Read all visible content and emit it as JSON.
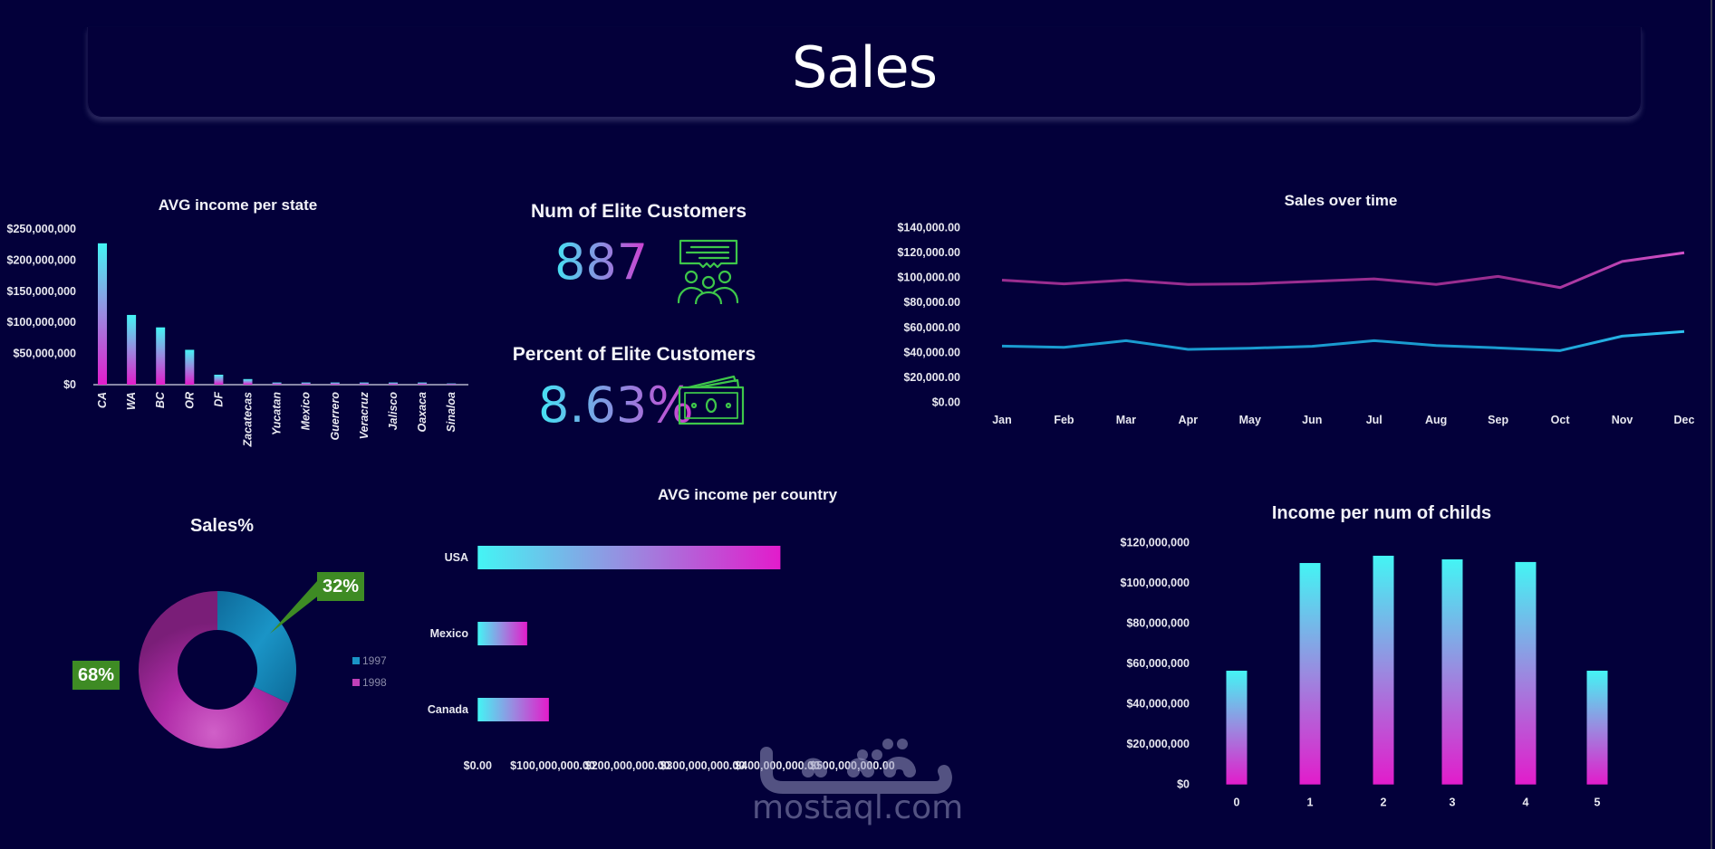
{
  "header": {
    "title": "Sales"
  },
  "kpis": [
    {
      "title": "Num of Elite Customers",
      "value": "887",
      "icon": "people-chat-icon"
    },
    {
      "title": "Percent of Elite Customers",
      "value": "8.63%",
      "icon": "cash-bills-icon"
    }
  ],
  "colors": {
    "background": "#03003a",
    "gradient_top": "#44f4f4",
    "gradient_bottom": "#e21ccb",
    "series_1997": "#1a9bd0",
    "series_1998": "#9a2d90",
    "icon_green": "#3ec74a",
    "callout_green": "#3e8b24"
  },
  "watermark": {
    "arabic": "مستقل",
    "latin": "mostaql.com"
  },
  "chart_data": [
    {
      "id": "avg-income-per-state",
      "type": "bar",
      "title": "AVG income per state",
      "xlabel": "",
      "ylabel": "",
      "categories": [
        "CA",
        "WA",
        "BC",
        "OR",
        "DF",
        "Zacatecas",
        "Yucatan",
        "Mexico",
        "Guerrero",
        "Veracruz",
        "Jalisco",
        "Oaxaca",
        "Sinaloa"
      ],
      "values": [
        227000000,
        112000000,
        92000000,
        56000000,
        16000000,
        9000000,
        3500000,
        3500000,
        3500000,
        3500000,
        3500000,
        3500000,
        2000000
      ],
      "ylim": [
        0,
        250000000
      ],
      "yticks": [
        0,
        50000000,
        100000000,
        150000000,
        200000000,
        250000000
      ],
      "ytick_labels": [
        "$0",
        "$50,000,000",
        "$100,000,000",
        "$150,000,000",
        "$200,000,000",
        "$250,000,000"
      ],
      "grid": false
    },
    {
      "id": "sales-over-time",
      "type": "line",
      "title": "Sales over time",
      "categories": [
        "Jan",
        "Feb",
        "Mar",
        "Apr",
        "May",
        "Jun",
        "Jul",
        "Aug",
        "Sep",
        "Oct",
        "Nov",
        "Dec"
      ],
      "series": [
        {
          "name": "1997",
          "values": [
            45000,
            44000,
            49400,
            42400,
            43300,
            44800,
            49400,
            45500,
            43600,
            41400,
            53000,
            56700
          ]
        },
        {
          "name": "1998",
          "values": [
            98000,
            95000,
            98000,
            94500,
            95000,
            97000,
            99000,
            94500,
            101000,
            92000,
            113000,
            120000
          ]
        }
      ],
      "ylim": [
        0,
        140000
      ],
      "yticks": [
        0,
        20000,
        40000,
        60000,
        80000,
        100000,
        120000,
        140000
      ],
      "ytick_labels": [
        "$0.00",
        "$20,000.00",
        "$40,000.00",
        "$60,000.00",
        "$80,000.00",
        "$100,000.00",
        "$120,000.00",
        "$140,000.00"
      ],
      "grid": false,
      "legend": "none"
    },
    {
      "id": "sales-percent",
      "type": "pie",
      "title": "Sales%",
      "donut": true,
      "labels": [
        "1997",
        "1998"
      ],
      "values": [
        32,
        68
      ],
      "value_labels": [
        "32%",
        "68%"
      ],
      "legend": "right"
    },
    {
      "id": "avg-income-per-country",
      "type": "bar",
      "orientation": "horizontal",
      "title": "AVG income per country",
      "categories": [
        "USA",
        "Mexico",
        "Canada"
      ],
      "values": [
        404000000,
        66000000,
        95000000
      ],
      "xlim": [
        0,
        500000000
      ],
      "xticks": [
        0,
        100000000,
        200000000,
        300000000,
        400000000,
        500000000
      ],
      "xtick_labels": [
        "$0.00",
        "$100,000,000.00",
        "$200,000,000.00",
        "$300,000,000.00",
        "$400,000,000.00",
        "$500,000,000.00"
      ],
      "grid": false
    },
    {
      "id": "income-per-num-of-childs",
      "type": "bar",
      "title": "Income per num of childs",
      "categories": [
        "0",
        "1",
        "2",
        "3",
        "4",
        "5"
      ],
      "values": [
        56400000,
        109800000,
        113400000,
        111600000,
        110300000,
        56400000
      ],
      "ylim": [
        0,
        120000000
      ],
      "yticks": [
        0,
        20000000,
        40000000,
        60000000,
        80000000,
        100000000,
        120000000
      ],
      "ytick_labels": [
        "$0",
        "$20,000,000",
        "$40,000,000",
        "$60,000,000",
        "$80,000,000",
        "$100,000,000",
        "$120,000,000"
      ],
      "grid": false
    }
  ]
}
